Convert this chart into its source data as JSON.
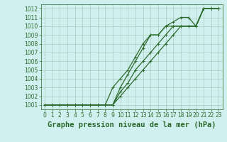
{
  "bg_color": "#cff0ee",
  "grid_color": "#aaccbb",
  "line_color": "#2d6a2d",
  "title": "Graphe pression niveau de la mer (hPa)",
  "xlim": [
    -0.5,
    23.5
  ],
  "ylim": [
    1000.5,
    1012.5
  ],
  "xticks": [
    0,
    1,
    2,
    3,
    4,
    5,
    6,
    7,
    8,
    9,
    10,
    11,
    12,
    13,
    14,
    15,
    16,
    17,
    18,
    19,
    20,
    21,
    22,
    23
  ],
  "yticks": [
    1001,
    1002,
    1003,
    1004,
    1005,
    1006,
    1007,
    1008,
    1009,
    1010,
    1011,
    1012
  ],
  "series": [
    [
      1001,
      1001,
      1001,
      1001,
      1001,
      1001,
      1001,
      1001,
      1001,
      1001,
      1002,
      1003,
      1004,
      1005,
      1006,
      1007,
      1008,
      1009,
      1010,
      1010,
      1010,
      1012,
      1012,
      1012
    ],
    [
      1001,
      1001,
      1001,
      1001,
      1001,
      1001,
      1001,
      1001,
      1001,
      1001,
      1002.5,
      1003.5,
      1005,
      1006,
      1007,
      1008,
      1009,
      1010,
      1010,
      1010,
      1010,
      1012,
      1012,
      1012
    ],
    [
      1001,
      1001,
      1001,
      1001,
      1001,
      1001,
      1001,
      1001,
      1001,
      1001,
      1003,
      1004.5,
      1006,
      1007.5,
      1009,
      1009,
      1010,
      1010.5,
      1011,
      1011,
      1010,
      1012,
      1012,
      1012
    ],
    [
      1001,
      1001,
      1001,
      1001,
      1001,
      1001,
      1001,
      1001,
      1001,
      1003,
      1004,
      1005,
      1006.5,
      1008,
      1009,
      1009,
      1010,
      1010,
      1010,
      1010,
      1010,
      1012,
      1012,
      1012
    ]
  ],
  "title_fontsize": 7.5,
  "tick_fontsize": 5.5,
  "line_width": 0.9
}
